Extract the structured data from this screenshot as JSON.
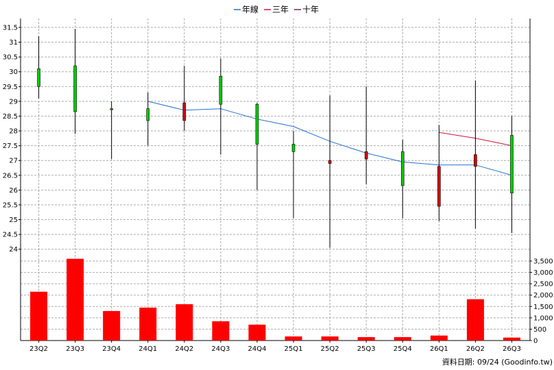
{
  "chart_data": {
    "type": "candlestick",
    "legend": [
      {
        "name": "年線",
        "color": "#1f6fd0"
      },
      {
        "name": "三年",
        "color": "#d0103a"
      },
      {
        "name": "十年",
        "color": "#7a1f4a"
      }
    ],
    "legend_position": "top-center",
    "grid": true,
    "categories": [
      "23Q2",
      "23Q3",
      "23Q4",
      "24Q1",
      "24Q2",
      "24Q3",
      "24Q4",
      "25Q1",
      "25Q2",
      "25Q3",
      "25Q4",
      "26Q1",
      "26Q2",
      "26Q3"
    ],
    "price_axis": {
      "ylim": [
        23.6,
        31.8
      ],
      "ticks": [
        "24",
        "24.5",
        "25",
        "25.5",
        "26",
        "26.5",
        "27",
        "27.5",
        "28",
        "28.5",
        "29",
        "29.5",
        "30",
        "30.5",
        "31",
        "31.5"
      ]
    },
    "candles": [
      {
        "open": 29.5,
        "high": 31.2,
        "low": 29.1,
        "close": 30.1
      },
      {
        "open": 28.65,
        "high": 31.45,
        "low": 27.9,
        "close": 30.2
      },
      {
        "open": 28.75,
        "high": 29.0,
        "low": 27.05,
        "close": 28.75
      },
      {
        "open": 28.35,
        "high": 29.3,
        "low": 27.5,
        "close": 28.75
      },
      {
        "open": 28.95,
        "high": 30.2,
        "low": 28.0,
        "close": 28.35
      },
      {
        "open": 28.9,
        "high": 30.45,
        "low": 27.2,
        "close": 29.85
      },
      {
        "open": 27.55,
        "high": 28.95,
        "low": 26.0,
        "close": 28.9
      },
      {
        "open": 27.3,
        "high": 28.0,
        "low": 25.05,
        "close": 27.55
      },
      {
        "open": 27.0,
        "high": 29.2,
        "low": 24.05,
        "close": 26.9
      },
      {
        "open": 27.3,
        "high": 29.5,
        "low": 26.2,
        "close": 27.05
      },
      {
        "open": 26.15,
        "high": 27.7,
        "low": 25.05,
        "close": 27.3
      },
      {
        "open": 26.8,
        "high": 28.2,
        "low": 24.95,
        "close": 25.45
      },
      {
        "open": 27.2,
        "high": 29.7,
        "low": 24.7,
        "close": 26.8
      },
      {
        "open": 25.9,
        "high": 28.5,
        "low": 24.55,
        "close": 27.85
      }
    ],
    "series": [
      {
        "name": "年線",
        "values": [
          null,
          null,
          null,
          29.0,
          28.7,
          28.75,
          28.4,
          28.15,
          27.65,
          27.25,
          26.95,
          26.85,
          26.85,
          26.5
        ]
      },
      {
        "name": "三年",
        "values": [
          null,
          null,
          null,
          null,
          null,
          null,
          null,
          null,
          null,
          null,
          null,
          27.95,
          27.75,
          27.5
        ]
      }
    ],
    "volume_axis": {
      "ylim": [
        0,
        3500
      ],
      "ticks": [
        "0",
        "500",
        "1,000",
        "1,500",
        "2,000",
        "2,500",
        "3,000",
        "3,500"
      ]
    },
    "volume": [
      2150,
      3600,
      1300,
      1450,
      1600,
      850,
      700,
      180,
      180,
      150,
      150,
      220,
      1820,
      130
    ],
    "colors": {
      "up": "#00cc00",
      "down": "#dd0000",
      "volume": "#ff0000",
      "grid": "#aaaaaa"
    }
  },
  "credit": "資料日期: 09/24  (Goodinfo.tw)"
}
